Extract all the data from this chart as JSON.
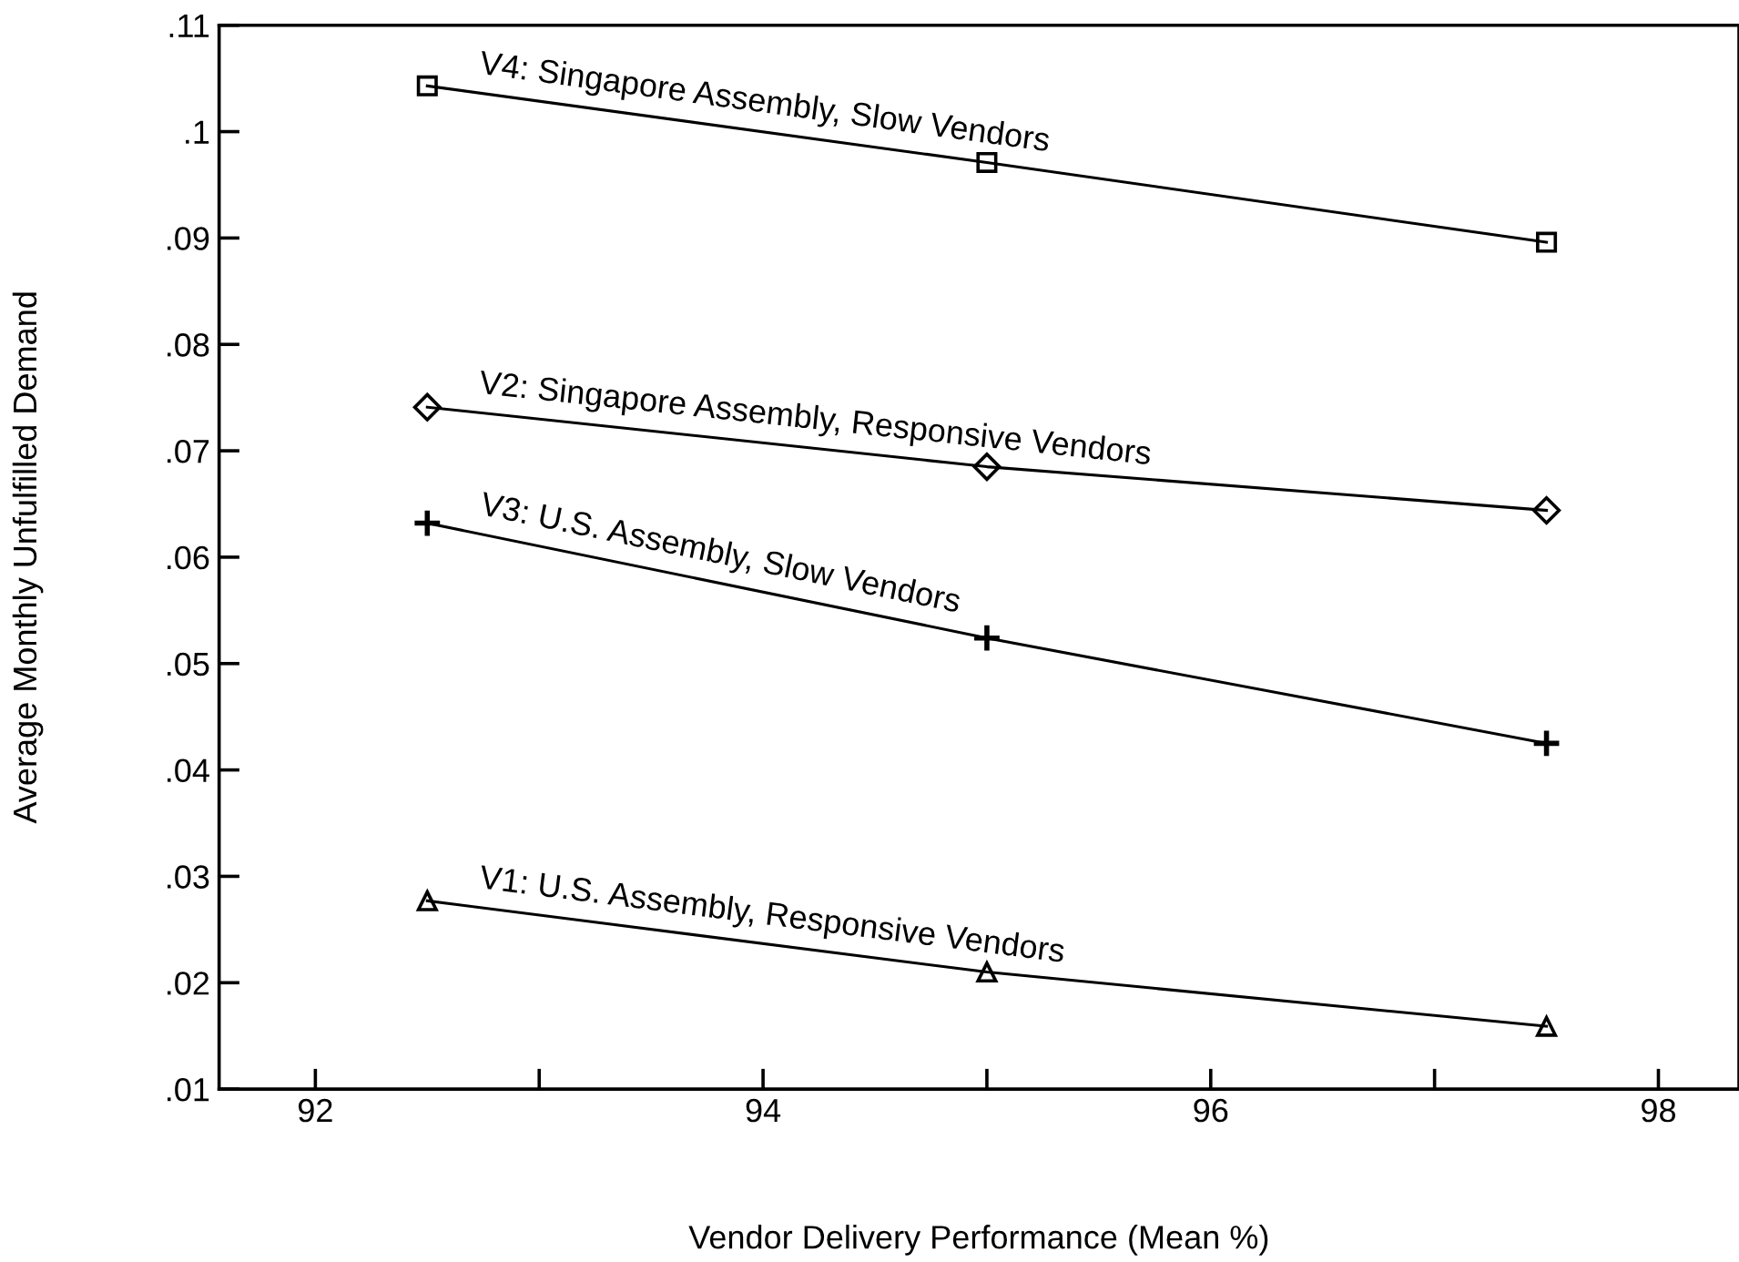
{
  "chart_data": {
    "type": "line",
    "xlabel": "Vendor Delivery Performance (Mean %)",
    "ylabel": "Average Monthly Unfulfilled Demand",
    "x": [
      92.5,
      95,
      97.5
    ],
    "series": [
      {
        "name": "V4: Singapore Assembly, Slow Vendors",
        "color": "#000000",
        "marker": "square",
        "values": [
          0.1043,
          0.0971,
          0.0896
        ]
      },
      {
        "name": "V2: Singapore Assembly, Responsive Vendors",
        "color": "#000000",
        "marker": "diamond",
        "values": [
          0.0741,
          0.0685,
          0.0644
        ]
      },
      {
        "name": "V3: U.S. Assembly, Slow Vendors",
        "color": "#000000",
        "marker": "cross",
        "values": [
          0.0632,
          0.0524,
          0.0425
        ]
      },
      {
        "name": "V1: U.S. Assembly, Responsive Vendors",
        "color": "#000000",
        "marker": "triangle",
        "values": [
          0.0277,
          0.021,
          0.0159
        ]
      }
    ],
    "xlim": [
      91.57,
      98.36
    ],
    "ylim": [
      0.01,
      0.11
    ],
    "xticks": [
      92,
      {
        "value": 93,
        "label": null
      },
      94,
      {
        "value": 95,
        "label": null
      },
      96,
      {
        "value": 97,
        "label": null
      },
      98
    ],
    "yticks": [
      {
        "value": 0.01,
        "label": ".01"
      },
      {
        "value": 0.02,
        "label": ".02"
      },
      {
        "value": 0.03,
        "label": ".03"
      },
      {
        "value": 0.04,
        "label": ".04"
      },
      {
        "value": 0.05,
        "label": ".05"
      },
      {
        "value": 0.06,
        "label": ".06"
      },
      {
        "value": 0.07,
        "label": ".07"
      },
      {
        "value": 0.08,
        "label": ".08"
      },
      {
        "value": 0.09,
        "label": ".09"
      },
      {
        "value": 0.1,
        "label": ".1"
      },
      {
        "value": 0.11,
        "label": ".11"
      }
    ],
    "grid": false,
    "legend": false,
    "line_style": "solid"
  }
}
